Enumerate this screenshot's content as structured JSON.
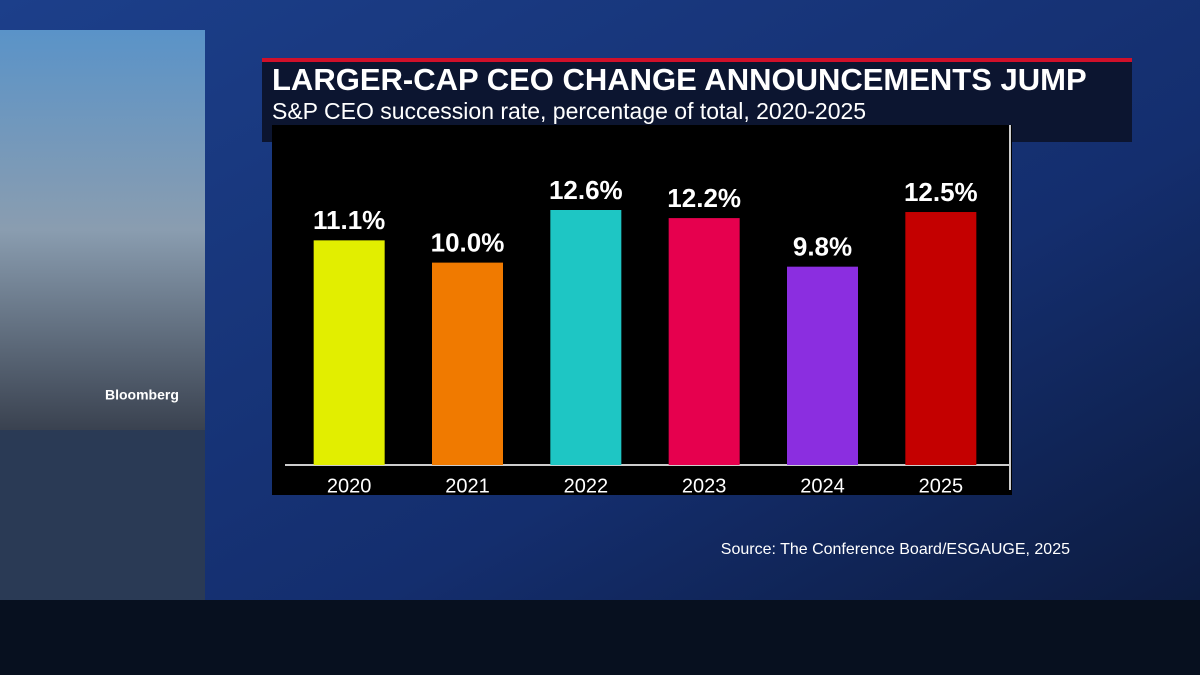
{
  "chart_data": {
    "type": "bar",
    "title": "LARGER-CAP CEO CHANGE ANNOUNCEMENTS JUMP",
    "subtitle": "S&P CEO succession rate, percentage of total, 2020-2025",
    "source": "Source: The Conference Board/ESGAUGE, 2025",
    "watermark": "Bloomberg",
    "categories": [
      "2020",
      "2021",
      "2022",
      "2023",
      "2024",
      "2025"
    ],
    "values": [
      11.1,
      10.0,
      12.6,
      12.2,
      9.8,
      12.5
    ],
    "value_labels": [
      "11.1%",
      "10.0%",
      "12.6%",
      "12.2%",
      "9.8%",
      "12.5%"
    ],
    "colors": [
      "#e2ee00",
      "#f07a00",
      "#1ec6c4",
      "#e6004e",
      "#8b2ee0",
      "#c40000"
    ]
  }
}
